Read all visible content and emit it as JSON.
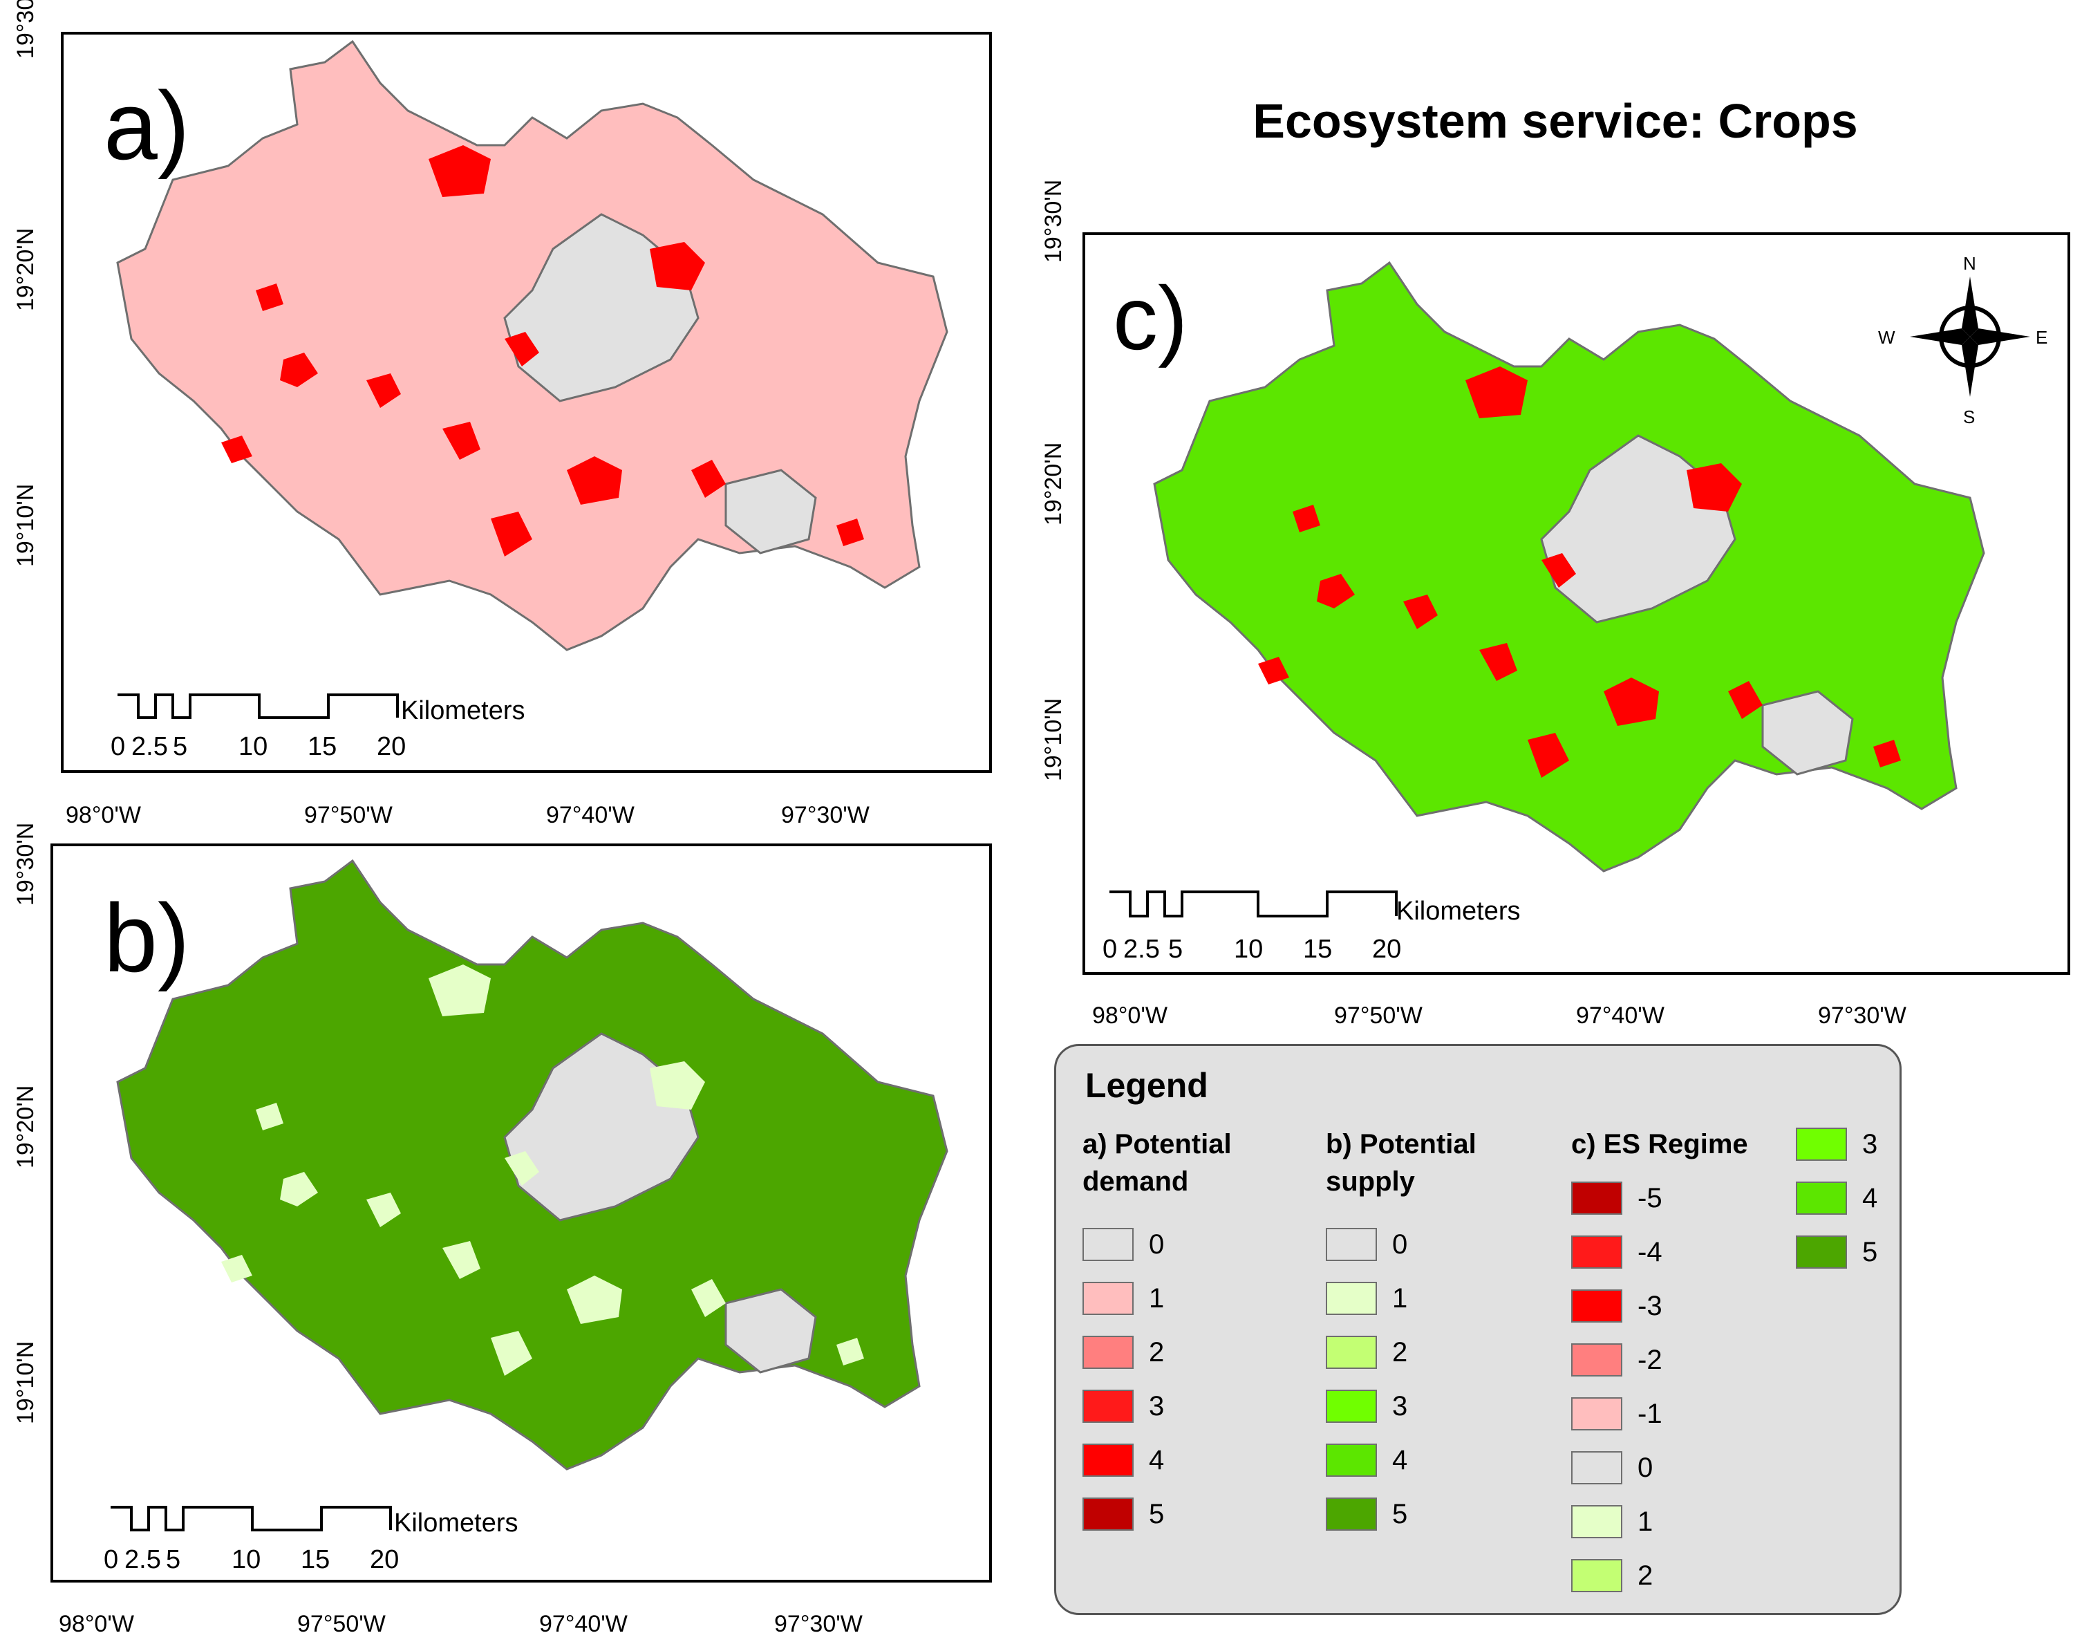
{
  "figure": {
    "title": "Ecosystem service: Crops",
    "panels": [
      {
        "label": "a)",
        "name": "Potential demand",
        "lat_labels": [
          "19°30",
          "19°20'N",
          "19°10'N"
        ],
        "lon_labels": [
          "98°0'W",
          "97°50'W",
          "97°40'W",
          "97°30'W"
        ],
        "scalebar": {
          "unit": "Kilometers",
          "ticks": [
            "0",
            "2.5",
            "5",
            "10",
            "15",
            "20"
          ]
        }
      },
      {
        "label": "b)",
        "name": "Potential supply",
        "lat_labels": [
          "19°30'N",
          "19°20'N",
          "19°10'N"
        ],
        "lon_labels": [
          "98°0'W",
          "97°50'W",
          "97°40'W",
          "97°30'W"
        ],
        "scalebar": {
          "unit": "Kilometers",
          "ticks": [
            "0",
            "2.5",
            "5",
            "10",
            "15",
            "20"
          ]
        }
      },
      {
        "label": "c)",
        "name": "ES Regime",
        "lat_labels": [
          "19°30'N",
          "19°20'N",
          "19°10'N"
        ],
        "lon_labels": [
          "98°0'W",
          "97°50'W",
          "97°40'W",
          "97°30'W"
        ],
        "scalebar": {
          "unit": "Kilometers",
          "ticks": [
            "0",
            "2.5",
            "5",
            "10",
            "15",
            "20"
          ]
        },
        "compass": {
          "n": "N",
          "s": "S",
          "e": "E",
          "w": "W"
        }
      }
    ]
  },
  "legend": {
    "title": "Legend",
    "potential_demand": {
      "title_line1": "a) Potential",
      "title_line2": "demand",
      "classes": [
        {
          "label": "0",
          "color": "#e1e1e1"
        },
        {
          "label": "1",
          "color": "#ffbebe"
        },
        {
          "label": "2",
          "color": "#ff7f7f"
        },
        {
          "label": "3",
          "color": "#ff1a1a"
        },
        {
          "label": "4",
          "color": "#ff0000"
        },
        {
          "label": "5",
          "color": "#c00000"
        }
      ]
    },
    "potential_supply": {
      "title_line1": "b) Potential",
      "title_line2": "supply",
      "classes": [
        {
          "label": "0",
          "color": "#e1e1e1"
        },
        {
          "label": "1",
          "color": "#e5ffc8"
        },
        {
          "label": "2",
          "color": "#c3ff73"
        },
        {
          "label": "3",
          "color": "#70ff00"
        },
        {
          "label": "4",
          "color": "#5ce600"
        },
        {
          "label": "5",
          "color": "#4ca600"
        }
      ]
    },
    "es_regime": {
      "title": "c) ES Regime",
      "classes": [
        {
          "label": "-5",
          "color": "#c00000"
        },
        {
          "label": "-4",
          "color": "#ff1a1a"
        },
        {
          "label": "-3",
          "color": "#ff0000"
        },
        {
          "label": "-2",
          "color": "#ff7f7f"
        },
        {
          "label": "-1",
          "color": "#ffbebe"
        },
        {
          "label": "0",
          "color": "#e1e1e1"
        },
        {
          "label": "1",
          "color": "#e5ffc8"
        },
        {
          "label": "2",
          "color": "#c3ff73"
        },
        {
          "label": "3",
          "color": "#70ff00"
        },
        {
          "label": "4",
          "color": "#5ce600"
        },
        {
          "label": "5",
          "color": "#4ca600"
        }
      ]
    }
  },
  "colors": {
    "background": "#e1e1e1",
    "demand_main": "#ffbebe",
    "demand_hot": "#ff0000",
    "supply_main": "#4ca600",
    "supply_light": "#e5ffc8",
    "regime_main": "#5ce600",
    "regime_hot": "#ff0000"
  }
}
